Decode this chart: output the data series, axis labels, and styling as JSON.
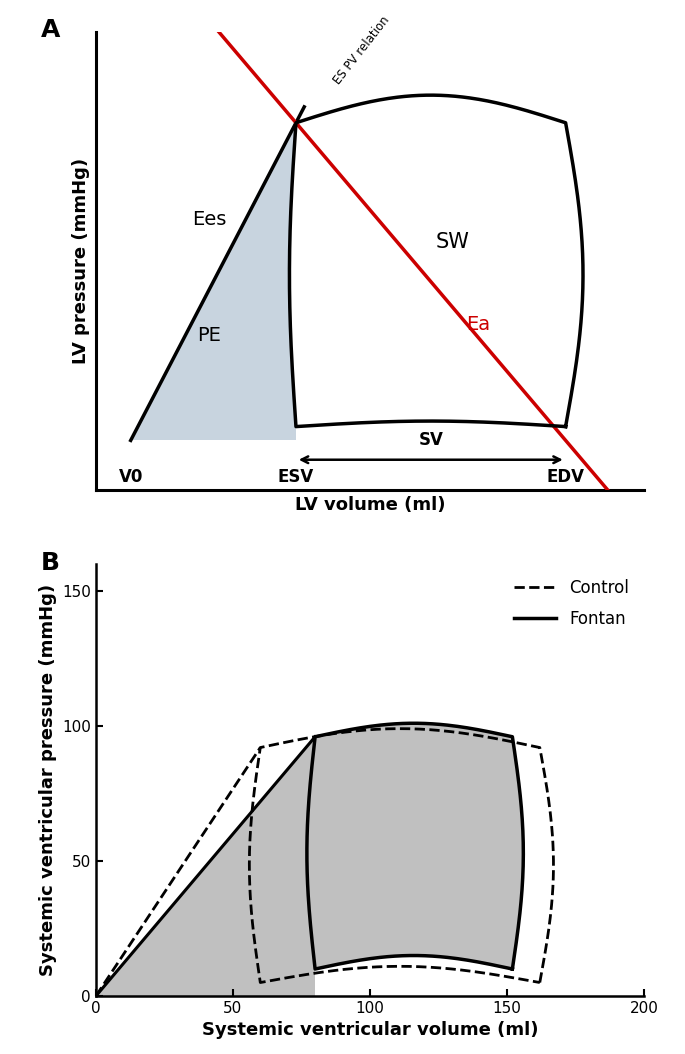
{
  "panel_A": {
    "panel_label": "A",
    "xlabel": "LV volume (ml)",
    "ylabel": "LV pressure (mmHg)",
    "v0_label": "V0",
    "esv_label": "ESV",
    "edv_label": "EDV",
    "sv_label": "SV",
    "ees_label": "Ees",
    "pe_label": "PE",
    "sw_label": "SW",
    "ea_label": "Ea",
    "es_pv_label": "ES PV relation",
    "pe_fill_color": "#c8d4df",
    "loop_color": "#000000",
    "ees_line_color": "#000000",
    "ea_line_color": "#cc0000",
    "V0": 0,
    "ESV": 38,
    "EDV": 100,
    "P_es": 115,
    "P_ed": 5,
    "xlim_min": -8,
    "xlim_max": 118,
    "ylim_min": -18,
    "ylim_max": 148
  },
  "panel_B": {
    "panel_label": "B",
    "xlabel": "Systemic ventricular volume (ml)",
    "ylabel": "Systemic ventricular pressure (mmHg)",
    "xlim": [
      0,
      200
    ],
    "ylim": [
      0,
      160
    ],
    "xticks": [
      0,
      50,
      100,
      150,
      200
    ],
    "yticks": [
      0,
      50,
      100,
      150
    ],
    "control_color": "#000000",
    "fontan_color": "#000000",
    "fill_color": "#c0c0c0",
    "legend_control": "Control",
    "legend_fontan": "Fontan",
    "ESV_fontan": 80,
    "EDV_fontan": 152,
    "P_es_fontan": 96,
    "P_ed_fontan": 10,
    "ESV_control": 60,
    "EDV_control": 162,
    "P_es_control": 92,
    "P_ed_control": 5,
    "ees_fontan_esv": 80,
    "ees_fontan_pes": 96,
    "ees_control_esv": 60,
    "ees_control_pes": 90
  }
}
